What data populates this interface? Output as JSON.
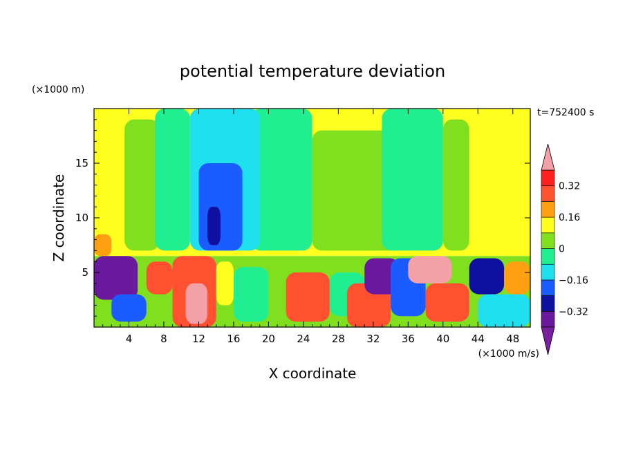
{
  "chart_data": {
    "type": "heatmap",
    "title": "potential temperature deviation",
    "xlabel": "X coordinate",
    "ylabel": "Z coordinate",
    "x_unit": "(×1000 m/s)",
    "y_unit": "(×1000 m)",
    "time_label": "t=752400 s",
    "xlim": [
      0,
      50
    ],
    "ylim": [
      0,
      20
    ],
    "x_ticks": [
      4,
      8,
      12,
      16,
      20,
      24,
      28,
      32,
      36,
      40,
      44,
      48
    ],
    "y_ticks": [
      5,
      10,
      15
    ],
    "colorbar": {
      "levels": [
        -0.4,
        -0.32,
        -0.24,
        -0.16,
        -0.08,
        0,
        0.08,
        0.16,
        0.24,
        0.32,
        0.4
      ],
      "tick_values": [
        -0.32,
        -0.16,
        0,
        0.16,
        0.32
      ],
      "tick_labels": [
        "−0.32",
        "−0.16",
        "0",
        "0.16",
        "0.32"
      ],
      "under_color": "#7a1fa0",
      "over_color": "#f4a0a8",
      "colors": [
        "#6a1a9e",
        "#1010a0",
        "#1a5cff",
        "#20e0f0",
        "#20ee90",
        "#80e020",
        "#ffff20",
        "#ffa010",
        "#ff5030",
        "#ff2020"
      ]
    },
    "regions": [
      {
        "x": [
          0,
          50
        ],
        "y": [
          6.5,
          20
        ],
        "value": 0.12
      },
      {
        "x": [
          3.5,
          7.5
        ],
        "y": [
          7,
          19
        ],
        "value": 0.05
      },
      {
        "x": [
          7,
          11
        ],
        "y": [
          7,
          20
        ],
        "value": -0.03
      },
      {
        "x": [
          18,
          25
        ],
        "y": [
          7,
          20
        ],
        "value": -0.03
      },
      {
        "x": [
          11,
          19
        ],
        "y": [
          7,
          20
        ],
        "value": -0.12
      },
      {
        "x": [
          12,
          17
        ],
        "y": [
          7,
          15
        ],
        "value": -0.2
      },
      {
        "x": [
          13,
          14.5
        ],
        "y": [
          7.5,
          11
        ],
        "value": -0.28
      },
      {
        "x": [
          25,
          35
        ],
        "y": [
          7,
          18
        ],
        "value": 0.04
      },
      {
        "x": [
          33,
          40
        ],
        "y": [
          7,
          20
        ],
        "value": -0.03
      },
      {
        "x": [
          40,
          43
        ],
        "y": [
          7,
          19
        ],
        "value": 0.03
      },
      {
        "x": [
          0,
          2
        ],
        "y": [
          6.5,
          8.5
        ],
        "value": 0.2
      },
      {
        "x": [
          0,
          50
        ],
        "y": [
          0,
          6.5
        ],
        "value": 0.02
      },
      {
        "x": [
          0,
          5
        ],
        "y": [
          2.5,
          6.5
        ],
        "value": -0.35
      },
      {
        "x": [
          2,
          6
        ],
        "y": [
          0.5,
          3
        ],
        "value": -0.2
      },
      {
        "x": [
          6,
          9
        ],
        "y": [
          3,
          6
        ],
        "value": 0.3
      },
      {
        "x": [
          9,
          14
        ],
        "y": [
          0,
          6.5
        ],
        "value": 0.3
      },
      {
        "x": [
          10.5,
          13
        ],
        "y": [
          0.3,
          4
        ],
        "value": 0.45
      },
      {
        "x": [
          14,
          16
        ],
        "y": [
          2,
          6
        ],
        "value": 0.1
      },
      {
        "x": [
          16,
          20
        ],
        "y": [
          0.5,
          5.5
        ],
        "value": -0.05
      },
      {
        "x": [
          22,
          27
        ],
        "y": [
          0.5,
          5
        ],
        "value": 0.3
      },
      {
        "x": [
          27,
          31
        ],
        "y": [
          1,
          5
        ],
        "value": -0.08
      },
      {
        "x": [
          29,
          34
        ],
        "y": [
          0,
          4
        ],
        "value": 0.25
      },
      {
        "x": [
          31,
          35
        ],
        "y": [
          3,
          6.3
        ],
        "value": -0.35
      },
      {
        "x": [
          34,
          38
        ],
        "y": [
          1,
          6.3
        ],
        "value": -0.2
      },
      {
        "x": [
          36,
          41
        ],
        "y": [
          4,
          6.5
        ],
        "value": 0.4
      },
      {
        "x": [
          38,
          43
        ],
        "y": [
          0.5,
          4
        ],
        "value": 0.3
      },
      {
        "x": [
          43,
          47
        ],
        "y": [
          3,
          6.3
        ],
        "value": -0.3
      },
      {
        "x": [
          44,
          50
        ],
        "y": [
          0,
          3
        ],
        "value": -0.15
      },
      {
        "x": [
          47,
          50
        ],
        "y": [
          3,
          6
        ],
        "value": 0.2
      }
    ]
  }
}
